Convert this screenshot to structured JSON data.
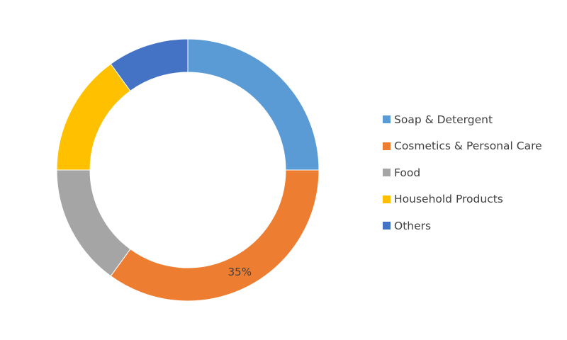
{
  "chart_data": {
    "type": "pie",
    "variant": "donut",
    "title": "",
    "categories": [
      "Soap & Detergent",
      "Cosmetics & Personal Care",
      "Food",
      "Household Products",
      "Others"
    ],
    "values": [
      25,
      35,
      15,
      15,
      10
    ],
    "unit": "%",
    "colors": [
      "#5B9BD5",
      "#ED7D31",
      "#A5A5A5",
      "#FFC000",
      "#4472C4"
    ],
    "data_labels": [
      {
        "category": "Cosmetics & Personal Care",
        "text": "35%"
      }
    ],
    "legend_position": "right",
    "start_angle_deg": 0,
    "direction": "clockwise"
  }
}
